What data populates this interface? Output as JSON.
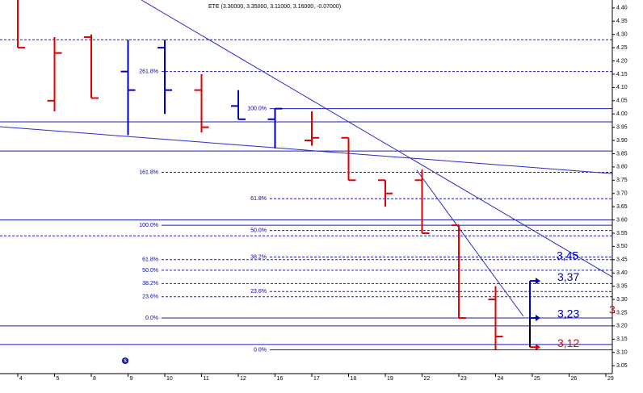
{
  "chart_data": {
    "type": "ohlc",
    "title": "ETE (3.30000, 3.35000, 3.11000, 3.16000, -0.07000)",
    "categories": [
      "4",
      "5",
      "8",
      "9",
      "10",
      "11",
      "12",
      "16",
      "17",
      "18",
      "19",
      "22",
      "23",
      "24",
      "25",
      "26",
      "29"
    ],
    "series": [
      {
        "open": [
          null,
          4.05,
          4.29,
          4.16,
          4.25,
          4.09,
          4.03,
          3.98,
          3.9,
          3.91,
          3.75,
          3.75,
          3.58,
          3.3,
          null,
          null,
          null
        ],
        "high": [
          4.45,
          4.29,
          4.3,
          4.28,
          4.28,
          4.15,
          4.09,
          4.02,
          4.01,
          3.91,
          3.75,
          3.79,
          3.58,
          3.35,
          null,
          null,
          null
        ],
        "low": [
          4.25,
          4.01,
          4.06,
          3.92,
          4.0,
          3.93,
          3.98,
          3.87,
          3.88,
          3.75,
          3.65,
          3.55,
          3.23,
          3.11,
          null,
          null,
          null
        ],
        "close": [
          4.25,
          4.23,
          4.06,
          4.09,
          4.09,
          3.95,
          3.98,
          4.02,
          3.91,
          3.75,
          3.7,
          3.55,
          3.23,
          3.16,
          null,
          null,
          null
        ],
        "colors": [
          "#e00000",
          "#e00000",
          "#e00000",
          "#0000c0",
          "#0000c0",
          "#e00000",
          "#0000c0",
          "#0000c0",
          "#e00000",
          "#e00000",
          "#e00000",
          "#e00000",
          "#e00000",
          "#e00000",
          null,
          null,
          null
        ]
      }
    ],
    "ylim": [
      3.02,
      4.43
    ],
    "yticks": [
      {
        "value": 4.4,
        "label": "4.40"
      },
      4.35,
      {
        "value": 4.3,
        "label": "4.30"
      },
      4.25,
      {
        "value": 4.2,
        "label": "4.20"
      },
      4.15,
      {
        "value": 4.1,
        "label": "4.10"
      },
      4.05,
      {
        "value": 4,
        "label": "4.00"
      },
      3.95,
      {
        "value": 3.9,
        "label": "3.90"
      },
      3.85,
      {
        "value": 3.8,
        "label": "3.80"
      },
      3.75,
      {
        "value": 3.7,
        "label": "3.70"
      },
      3.65,
      {
        "value": 3.6,
        "label": "3.60"
      },
      3.55,
      {
        "value": 3.5,
        "label": "3.50"
      },
      3.45,
      {
        "value": 3.4,
        "label": "3.40"
      },
      3.35,
      {
        "value": 3.3,
        "label": "3.30"
      },
      3.25,
      {
        "value": 3.2,
        "label": "3.20"
      },
      3.15,
      {
        "value": 3.1,
        "label": "3.10"
      },
      3.05
    ],
    "fib_levels": [
      {
        "label": "261.8%",
        "value": 4.16,
        "style": "dashed"
      },
      {
        "label": "100.0%",
        "value": 4.02,
        "style": "solid"
      },
      {
        "label": "161.8%",
        "value": 3.78,
        "style": "dashed"
      },
      {
        "label": "61.8%",
        "value": 3.68,
        "style": "dashed"
      },
      {
        "label": "100.0%",
        "value": 3.58,
        "style": "solid"
      },
      {
        "label": "50.0%",
        "value": 3.56,
        "style": "dashed"
      },
      {
        "label": "38.2%",
        "value": 3.46,
        "style": "dashed"
      },
      {
        "label": "61.8%",
        "value": 3.45,
        "style": "dashed"
      },
      {
        "label": "50.0%",
        "value": 3.41,
        "style": "dashed"
      },
      {
        "label": "38.2%",
        "value": 3.36,
        "style": "dashed"
      },
      {
        "label": "23.6%",
        "value": 3.33,
        "style": "dashed"
      },
      {
        "label": "23.6%",
        "value": 3.31,
        "style": "dashed"
      },
      {
        "label": "0.0%",
        "value": 3.23,
        "style": "solid"
      },
      {
        "label": "0.0%",
        "value": 3.11,
        "style": "solid"
      }
    ],
    "levels": [
      {
        "value": 4.28,
        "style": "dashed"
      },
      {
        "value": 3.97,
        "style": "solid"
      },
      {
        "value": 3.86,
        "style": "solid"
      },
      {
        "value": 3.6,
        "style": "solid"
      },
      {
        "value": 3.54,
        "style": "dashed"
      },
      {
        "value": 3.2,
        "style": "solid"
      },
      {
        "value": 3.13,
        "style": "solid"
      }
    ],
    "trend_label": {
      "label": "3,45",
      "value": 3.45
    },
    "targets": [
      {
        "label": "3,37",
        "value": 3.37,
        "color": "#0000c0"
      },
      {
        "label": "3,23",
        "value": 3.23,
        "color": "#0000c0"
      },
      {
        "label": "3,12",
        "value": 3.12,
        "color": "#e00000"
      }
    ],
    "edge_label": "3",
    "marker_label": "S"
  }
}
